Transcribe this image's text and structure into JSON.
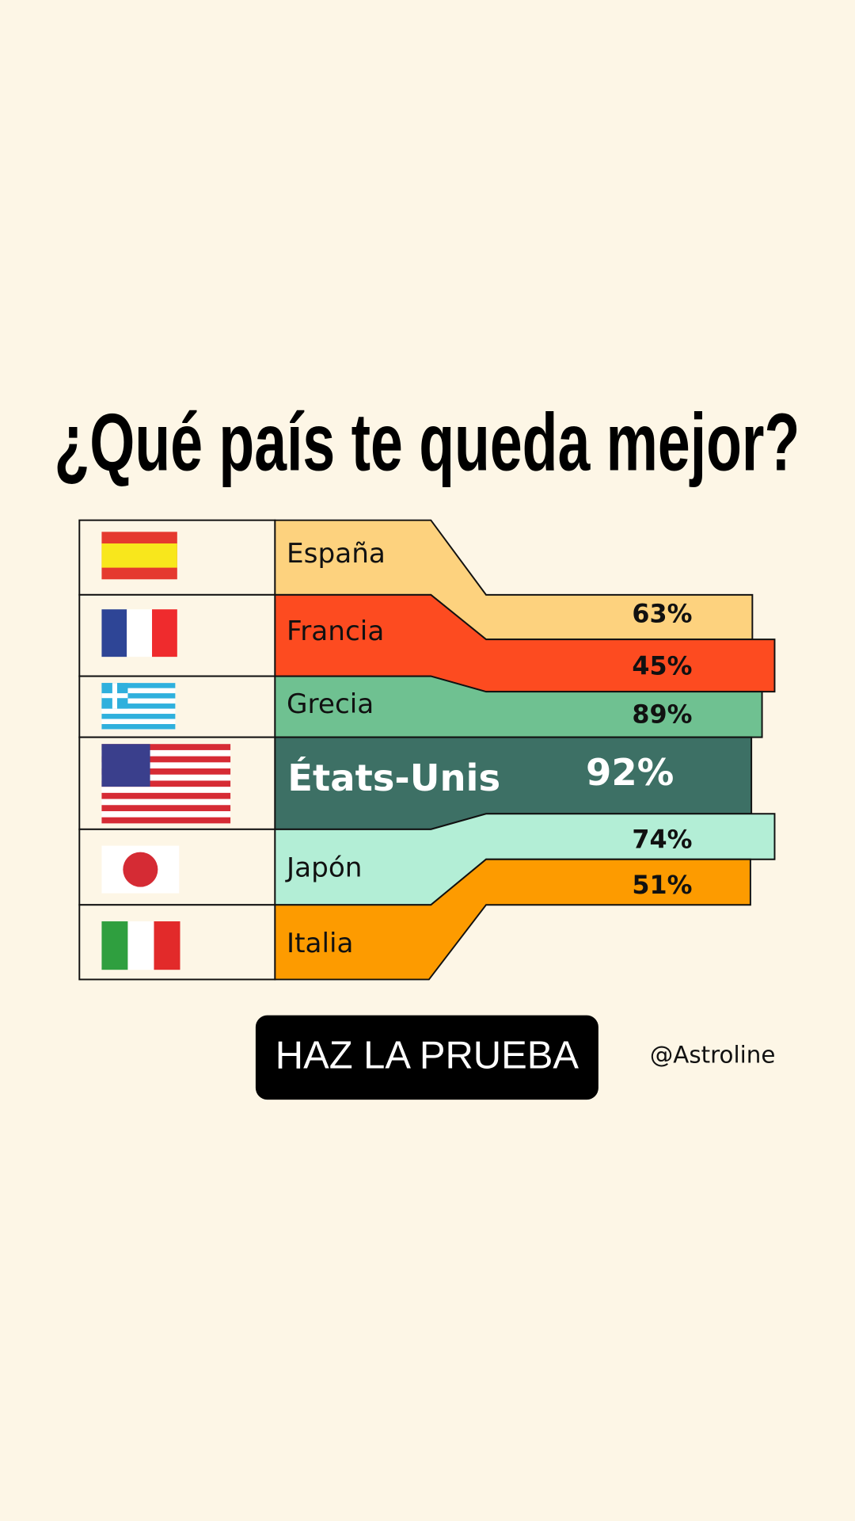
{
  "title": "¿Qué país te queda mejor?",
  "rows": [
    {
      "country": "España",
      "percent": "63%"
    },
    {
      "country": "Francia",
      "percent": "45%"
    },
    {
      "country": "Grecia",
      "percent": "89%"
    },
    {
      "country": "États-Unis",
      "percent": "92%"
    },
    {
      "country": "Japón",
      "percent": "74%"
    },
    {
      "country": "Italia",
      "percent": "51%"
    }
  ],
  "button": "HAZ LA PRUEBA",
  "handle": "@Astroline"
}
